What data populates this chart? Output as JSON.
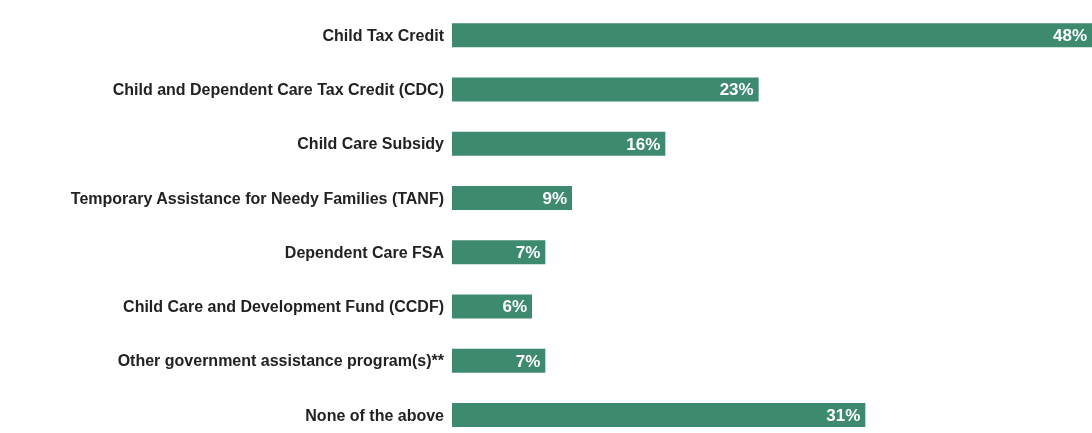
{
  "chart_data": {
    "type": "bar",
    "orientation": "horizontal",
    "categories": [
      "Child Tax Credit",
      "Child and Dependent Care Tax Credit (CDC)",
      "Child Care Subsidy",
      "Temporary Assistance for Needy Families (TANF)",
      "Dependent Care FSA",
      "Child Care and Development Fund (CCDF)",
      "Other government assistance program(s)**",
      "None of the above"
    ],
    "values": [
      48,
      23,
      16,
      9,
      7,
      6,
      7,
      31
    ],
    "value_labels": [
      "48%",
      "23%",
      "16%",
      "9%",
      "7%",
      "6%",
      "7%",
      "31%"
    ],
    "color": "#3d8a6f"
  }
}
